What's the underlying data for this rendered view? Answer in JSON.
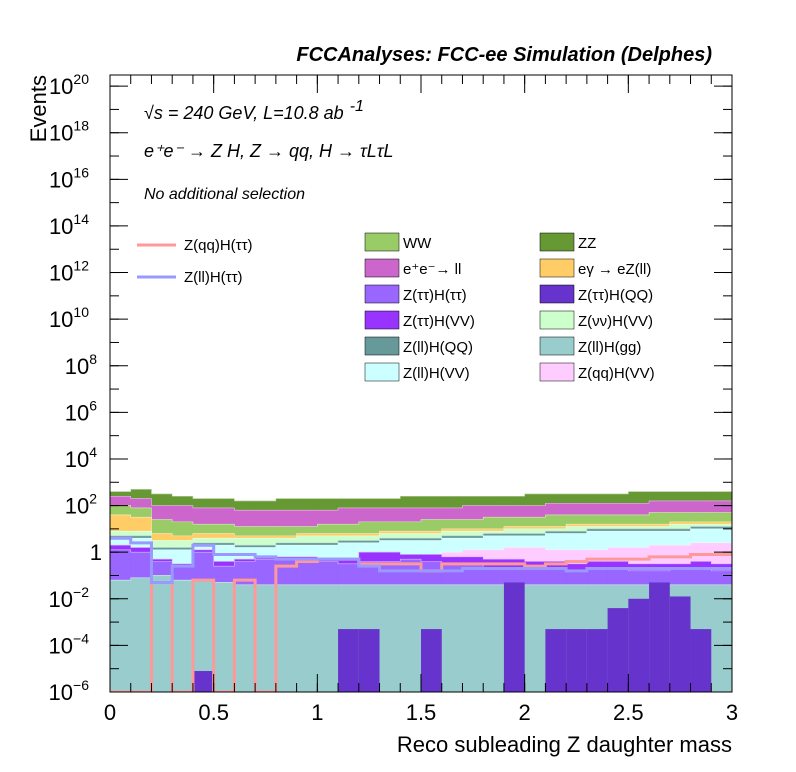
{
  "chart_data": {
    "type": "area",
    "title": "FCCAnalyses: FCC-ee Simulation (Delphes)",
    "annotations": {
      "energy": "√s = 240 GeV, L=10.8 ab",
      "energy_exp": "-1",
      "process": "e⁺e⁻ → Z H, Z → qq, H → τLτL",
      "selection": "No additional selection"
    },
    "xlabel": "Reco subleading Z daughter mass",
    "ylabel": "Events",
    "xlim": [
      0,
      3
    ],
    "ylim": [
      1e-06,
      3e+20
    ],
    "yscale": "log",
    "grid": false,
    "xticks": [
      {
        "v": 0,
        "label": "0"
      },
      {
        "v": 0.5,
        "label": "0.5"
      },
      {
        "v": 1,
        "label": "1"
      },
      {
        "v": 1.5,
        "label": "1.5"
      },
      {
        "v": 2,
        "label": "2"
      },
      {
        "v": 2.5,
        "label": "2.5"
      },
      {
        "v": 3,
        "label": "3"
      }
    ],
    "yticks": [
      {
        "exp": -6,
        "base": "10",
        "sup": "−6"
      },
      {
        "exp": -4,
        "base": "10",
        "sup": "−4"
      },
      {
        "exp": -2,
        "base": "10",
        "sup": "−2"
      },
      {
        "exp": 0,
        "base": "1",
        "sup": ""
      },
      {
        "exp": 2,
        "base": "10",
        "sup": "2"
      },
      {
        "exp": 4,
        "base": "10",
        "sup": "4"
      },
      {
        "exp": 6,
        "base": "10",
        "sup": "6"
      },
      {
        "exp": 8,
        "base": "10",
        "sup": "8"
      },
      {
        "exp": 10,
        "base": "10",
        "sup": "10"
      },
      {
        "exp": 12,
        "base": "10",
        "sup": "12"
      },
      {
        "exp": 14,
        "base": "10",
        "sup": "14"
      },
      {
        "exp": 16,
        "base": "10",
        "sup": "16"
      },
      {
        "exp": 18,
        "base": "10",
        "sup": "18"
      },
      {
        "exp": 20,
        "base": "10",
        "sup": "20"
      }
    ],
    "bin_edges": [
      0,
      0.1,
      0.2,
      0.3,
      0.4,
      0.5,
      0.6,
      0.7,
      0.8,
      0.9,
      1.0,
      1.1,
      1.2,
      1.3,
      1.4,
      1.5,
      1.6,
      1.7,
      1.8,
      1.9,
      2.0,
      2.1,
      2.2,
      2.3,
      2.4,
      2.5,
      2.6,
      2.7,
      2.8,
      2.9,
      3.0
    ],
    "stack_note": "values are cumulative stack tops (log10 of events) per bin, listed bottom to top",
    "stack": [
      {
        "name": "Z(ll)H(gg)",
        "color": "#99cccc",
        "log10_top": [
          -1.2,
          -1.1,
          -1.0,
          -1.2,
          -1.2,
          -1.3,
          -1.4,
          -1.4,
          -1.4,
          -1.4,
          -1.4,
          -1.4,
          -1.4,
          -1.4,
          -1.4,
          -1.4,
          -1.4,
          -1.4,
          -1.4,
          -1.4,
          -1.4,
          -1.4,
          -1.4,
          -1.4,
          -1.4,
          -1.4,
          -1.4,
          -1.4,
          -1.4,
          -1.4
        ]
      },
      {
        "name": "Z(ττ)H(QQ)",
        "color": "#6633cc",
        "log10_top": [
          -1.2,
          -1.1,
          -1.0,
          -1.2,
          -1.2,
          -1.3,
          -1.4,
          -1.4,
          -1.4,
          -1.4,
          -1.4,
          -1.4,
          -1.4,
          -1.4,
          -1.4,
          -1.4,
          -1.4,
          -1.4,
          -1.4,
          -1.4,
          -1.4,
          -1.4,
          -1.4,
          -1.4,
          -1.4,
          -1.4,
          -1.4,
          -1.4,
          -1.4,
          -1.4
        ]
      },
      {
        "name": "Z(ττ)H(ττ)",
        "color": "#9966ff",
        "log10_top": [
          0.1,
          0.0,
          -0.4,
          -0.6,
          0.0,
          -0.6,
          -0.4,
          -0.3,
          -0.3,
          -0.3,
          -0.4,
          -0.5,
          -0.4,
          -0.4,
          -0.3,
          -0.4,
          -0.5,
          -0.5,
          -0.7,
          -0.7,
          -0.7,
          -0.7,
          -0.8,
          -0.7,
          -0.7,
          -0.8,
          -0.8,
          -0.7,
          -0.7,
          -0.8
        ]
      },
      {
        "name": "Z(ττ)H(VV)",
        "color": "#9933ff",
        "log10_top": [
          0.3,
          0.2,
          -0.3,
          -0.5,
          0.1,
          -0.4,
          -0.3,
          -0.2,
          -0.2,
          -0.2,
          -0.3,
          -0.3,
          0.0,
          0.0,
          -0.1,
          -0.1,
          -0.2,
          -0.2,
          -0.3,
          -0.3,
          -0.4,
          -0.4,
          -0.5,
          -0.4,
          -0.4,
          -0.5,
          -0.5,
          -0.5,
          -0.4,
          -0.5
        ]
      },
      {
        "name": "Z(qq)H(VV)",
        "color": "#ffccff",
        "log10_top": [
          0.3,
          0.2,
          -0.3,
          -0.5,
          0.1,
          -0.4,
          -0.3,
          -0.2,
          -0.2,
          -0.2,
          -0.3,
          -0.3,
          0.0,
          0.0,
          -0.1,
          -0.1,
          0.0,
          0.1,
          0.1,
          0.2,
          0.2,
          0.1,
          0.1,
          0.1,
          0.2,
          0.2,
          0.3,
          0.3,
          0.4,
          0.4
        ]
      },
      {
        "name": "Z(ll)H(VV)",
        "color": "#ccffff",
        "log10_top": [
          0.6,
          0.6,
          0.1,
          0.1,
          0.3,
          0.3,
          0.2,
          0.2,
          0.3,
          0.3,
          0.3,
          0.4,
          0.4,
          0.5,
          0.5,
          0.5,
          0.6,
          0.6,
          0.7,
          0.7,
          0.7,
          0.8,
          0.8,
          0.9,
          0.9,
          0.9,
          0.9,
          0.9,
          1.0,
          1.0
        ]
      },
      {
        "name": "Z(ll)H(QQ)",
        "color": "#669999",
        "log10_top": [
          0.7,
          0.7,
          0.2,
          0.2,
          0.4,
          0.4,
          0.3,
          0.3,
          0.4,
          0.4,
          0.4,
          0.5,
          0.5,
          0.6,
          0.6,
          0.6,
          0.7,
          0.7,
          0.8,
          0.8,
          0.8,
          0.9,
          0.9,
          1.0,
          1.0,
          1.0,
          1.0,
          1.0,
          1.1,
          1.1
        ]
      },
      {
        "name": "Z(νν)H(VV)",
        "color": "#ccffcc",
        "log10_top": [
          0.9,
          0.9,
          0.5,
          0.5,
          0.6,
          0.6,
          0.6,
          0.6,
          0.6,
          0.7,
          0.7,
          0.7,
          0.7,
          0.8,
          0.8,
          0.8,
          0.9,
          0.9,
          0.9,
          1.0,
          1.0,
          1.0,
          1.1,
          1.1,
          1.1,
          1.1,
          1.1,
          1.2,
          1.2,
          1.2
        ]
      },
      {
        "name": "eγ → eZ(ll)",
        "color": "#ffcc66",
        "log10_top": [
          1.6,
          1.5,
          0.8,
          0.7,
          0.8,
          0.8,
          0.7,
          0.7,
          0.7,
          0.8,
          0.8,
          0.8,
          0.8,
          0.9,
          0.9,
          0.9,
          1.0,
          1.0,
          1.0,
          1.1,
          1.1,
          1.1,
          1.2,
          1.2,
          1.2,
          1.2,
          1.2,
          1.3,
          1.3,
          1.3
        ]
      },
      {
        "name": "WW",
        "color": "#99cc66",
        "log10_top": [
          2.0,
          1.9,
          1.4,
          1.3,
          1.2,
          1.2,
          1.1,
          1.1,
          1.1,
          1.1,
          1.2,
          1.2,
          1.3,
          1.3,
          1.3,
          1.4,
          1.4,
          1.4,
          1.5,
          1.5,
          1.5,
          1.6,
          1.6,
          1.6,
          1.6,
          1.6,
          1.7,
          1.7,
          1.7,
          1.7
        ]
      },
      {
        "name": "e⁺e⁻→ ll",
        "color": "#cc66cc",
        "log10_top": [
          2.4,
          2.3,
          2.0,
          2.0,
          1.9,
          1.9,
          1.8,
          1.8,
          1.8,
          1.8,
          1.8,
          1.9,
          1.9,
          1.9,
          1.9,
          1.9,
          1.9,
          2.0,
          2.0,
          2.0,
          2.0,
          2.1,
          2.1,
          2.1,
          2.1,
          2.1,
          2.2,
          2.2,
          2.2,
          2.2
        ]
      },
      {
        "name": "ZZ",
        "color": "#669933",
        "log10_top": [
          2.6,
          2.7,
          2.5,
          2.4,
          2.3,
          2.3,
          2.2,
          2.2,
          2.3,
          2.3,
          2.3,
          2.3,
          2.3,
          2.3,
          2.4,
          2.4,
          2.4,
          2.4,
          2.4,
          2.4,
          2.5,
          2.5,
          2.5,
          2.5,
          2.5,
          2.6,
          2.6,
          2.6,
          2.6,
          2.6
        ]
      }
    ],
    "spikes": [
      {
        "name": "Z(ll)H(gg)",
        "color": "#99cccc",
        "from_bin": 7,
        "to_bin": 30,
        "log10_top": -1.9
      },
      {
        "name": "Z(ττ)H(QQ)",
        "color": "#6633cc",
        "bins": [
          {
            "bin": 4,
            "log10_top": -5.1
          },
          {
            "bin": 11,
            "log10_top": -3.3
          },
          {
            "bin": 12,
            "log10_top": -3.3
          },
          {
            "bin": 15,
            "log10_top": -3.3
          },
          {
            "bin": 19,
            "log10_top": -1.3
          },
          {
            "bin": 21,
            "log10_top": -3.3
          },
          {
            "bin": 22,
            "log10_top": -3.3
          },
          {
            "bin": 23,
            "log10_top": -3.3
          },
          {
            "bin": 24,
            "log10_top": -2.4
          },
          {
            "bin": 25,
            "log10_top": -2.0
          },
          {
            "bin": 26,
            "log10_top": -1.3
          },
          {
            "bin": 27,
            "log10_top": -1.9
          },
          {
            "bin": 28,
            "log10_top": -3.3
          }
        ]
      }
    ],
    "signals": [
      {
        "name": "Z(qq)H(ττ)",
        "color": "#ff9999",
        "log10": [
          -6.0,
          -6.0,
          -1.3,
          -6.0,
          -1.2,
          -6.0,
          -1.2,
          -6.0,
          -0.6,
          -0.4,
          -0.3,
          -0.3,
          -0.5,
          -0.5,
          -0.5,
          -0.8,
          -0.5,
          -0.5,
          -0.5,
          -0.5,
          -0.6,
          -0.5,
          -0.4,
          -0.3,
          -0.3,
          -0.3,
          -0.2,
          -0.2,
          -0.1,
          -0.1
        ]
      },
      {
        "name": "Z(ll)H(ττ)",
        "color": "#9999ff",
        "log10": [
          0.6,
          0.4,
          -1.3,
          -0.6,
          0.3,
          -0.1,
          -0.1,
          -0.2,
          -0.3,
          -0.3,
          -0.3,
          -0.3,
          -0.6,
          -0.8,
          -0.8,
          -0.8,
          -0.8,
          -0.7,
          -0.7,
          -0.7,
          -0.7,
          -0.7,
          -0.8,
          -0.7,
          -0.7,
          -0.7,
          -0.7,
          -0.7,
          -0.7,
          -0.7
        ]
      }
    ],
    "legend": {
      "placement": "top",
      "signals": [
        "Z(qq)H(ττ)",
        "Z(ll)H(ττ)"
      ],
      "backgrounds_left": [
        "WW",
        "e⁺e⁻→ ll",
        "Z(ττ)H(ττ)",
        "Z(ττ)H(VV)",
        "Z(ll)H(QQ)",
        "Z(ll)H(VV)"
      ],
      "backgrounds_right": [
        "ZZ",
        "eγ → eZ(ll)",
        "Z(ττ)H(QQ)",
        "Z(νν)H(VV)",
        "Z(ll)H(gg)",
        "Z(qq)H(VV)"
      ]
    }
  }
}
